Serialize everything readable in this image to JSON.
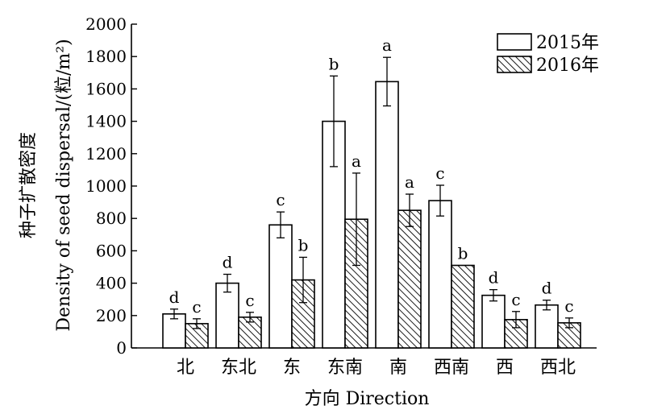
{
  "chart_data": {
    "type": "bar",
    "ylabel_line1": "种子扩散密度",
    "ylabel_line2": "Density of seed dispersal/(粒/m²)",
    "xlabel": "方向 Direction",
    "categories": [
      "北",
      "东北",
      "东",
      "东南",
      "南",
      "西南",
      "西",
      "西北"
    ],
    "ylim": [
      0,
      2000
    ],
    "yticks": [
      0,
      200,
      400,
      600,
      800,
      1000,
      1200,
      1400,
      1600,
      1800,
      2000
    ],
    "series": [
      {
        "name": "2015年",
        "style": "open",
        "values": [
          210,
          400,
          760,
          1400,
          1645,
          910,
          325,
          265
        ],
        "errors": [
          30,
          55,
          80,
          280,
          150,
          95,
          35,
          30
        ],
        "letters": [
          "d",
          "d",
          "c",
          "b",
          "a",
          "c",
          "d",
          "d"
        ]
      },
      {
        "name": "2016年",
        "style": "hatched",
        "values": [
          150,
          190,
          420,
          795,
          850,
          510,
          175,
          155
        ],
        "errors": [
          30,
          30,
          140,
          285,
          100,
          0,
          50,
          30
        ],
        "letters": [
          "c",
          "c",
          "b",
          "a",
          "a",
          "b",
          "c",
          "c"
        ]
      }
    ],
    "legend_position": "top-right",
    "grid": false,
    "colors": {
      "bar_fill": "#ffffff",
      "stroke": "#000000"
    }
  }
}
